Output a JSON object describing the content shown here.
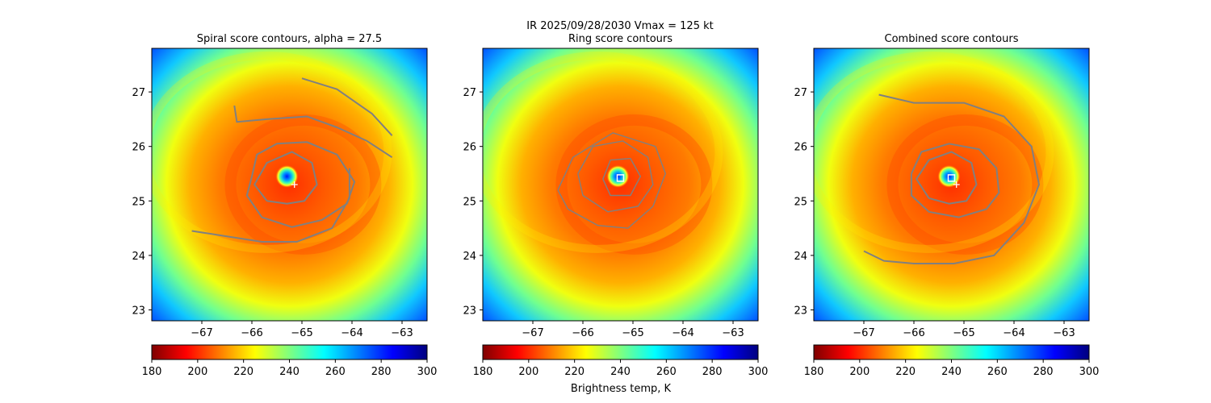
{
  "suptitle_line1": "IR  2025/09/28/2030    Vmax = 125 kt",
  "colorbar_label": "Brightness temp, K",
  "colormap": [
    "#7f0000",
    "#ff0000",
    "#ff7f00",
    "#ffff00",
    "#7fff7f",
    "#00ffff",
    "#007fff",
    "#0000ff",
    "#00007f"
  ],
  "contour_color": "#808080",
  "chart_data": [
    {
      "type": "heatmap",
      "title": "Spiral score contours, alpha = 27.5",
      "xlim": [
        -68.0,
        -62.5
      ],
      "ylim": [
        22.8,
        27.8
      ],
      "xticks": [
        -67,
        -66,
        -65,
        -64,
        -63
      ],
      "yticks": [
        23,
        24,
        25,
        26,
        27
      ],
      "clim": [
        180,
        300
      ],
      "colorbar_ticks": [
        180,
        200,
        220,
        240,
        260,
        280,
        300
      ],
      "eye_center": [
        -65.3,
        25.45
      ],
      "markers": [
        {
          "shape": "plus",
          "lon": -65.15,
          "lat": 25.3,
          "color": "#ffffff"
        }
      ],
      "contours": [
        {
          "level": "inner",
          "points": [
            [
              -65.7,
              25.0
            ],
            [
              -65.95,
              25.3
            ],
            [
              -65.7,
              25.7
            ],
            [
              -65.2,
              25.9
            ],
            [
              -64.8,
              25.7
            ],
            [
              -64.7,
              25.3
            ],
            [
              -64.95,
              25.0
            ],
            [
              -65.3,
              24.95
            ],
            [
              -65.7,
              25.0
            ]
          ]
        },
        {
          "level": "middle",
          "points": [
            [
              -66.0,
              25.45
            ],
            [
              -65.9,
              25.85
            ],
            [
              -65.5,
              26.05
            ],
            [
              -64.9,
              26.08
            ],
            [
              -64.3,
              25.85
            ],
            [
              -63.95,
              25.35
            ],
            [
              -64.1,
              24.95
            ],
            [
              -64.6,
              24.65
            ],
            [
              -65.2,
              24.52
            ],
            [
              -65.8,
              24.7
            ],
            [
              -66.1,
              25.1
            ],
            [
              -66.0,
              25.45
            ]
          ]
        },
        {
          "level": "spiral-top",
          "points": [
            [
              -66.35,
              26.75
            ],
            [
              -66.3,
              26.45
            ],
            [
              -65.7,
              26.5
            ],
            [
              -64.9,
              26.55
            ],
            [
              -64.3,
              26.35
            ],
            [
              -63.7,
              26.1
            ],
            [
              -63.2,
              25.8
            ]
          ]
        },
        {
          "level": "spiral-bottom",
          "points": [
            [
              -67.2,
              24.45
            ],
            [
              -66.5,
              24.35
            ],
            [
              -65.8,
              24.25
            ],
            [
              -65.1,
              24.25
            ],
            [
              -64.4,
              24.5
            ],
            [
              -64.05,
              25.05
            ],
            [
              -64.05,
              25.6
            ]
          ]
        },
        {
          "level": "spiral-outer",
          "points": [
            [
              -65.0,
              27.25
            ],
            [
              -64.3,
              27.05
            ],
            [
              -63.6,
              26.6
            ],
            [
              -63.2,
              26.2
            ]
          ]
        }
      ]
    },
    {
      "type": "heatmap",
      "title": "Ring score contours",
      "xlim": [
        -68.0,
        -62.5
      ],
      "ylim": [
        22.8,
        27.8
      ],
      "xticks": [
        -67,
        -66,
        -65,
        -64,
        -63
      ],
      "yticks": [
        23,
        24,
        25,
        26,
        27
      ],
      "clim": [
        180,
        300
      ],
      "colorbar_ticks": [
        180,
        200,
        220,
        240,
        260,
        280,
        300
      ],
      "eye_center": [
        -65.3,
        25.45
      ],
      "markers": [
        {
          "shape": "square",
          "lon": -65.25,
          "lat": 25.42,
          "color": "#ffffff"
        }
      ],
      "contours": [
        {
          "level": "ring",
          "points": [
            [
              -66.1,
              25.5
            ],
            [
              -65.8,
              26.0
            ],
            [
              -65.2,
              26.1
            ],
            [
              -64.7,
              25.8
            ],
            [
              -64.6,
              25.3
            ],
            [
              -64.9,
              24.9
            ],
            [
              -65.5,
              24.8
            ],
            [
              -66.0,
              25.1
            ],
            [
              -66.1,
              25.5
            ]
          ]
        },
        {
          "level": "ring-inner",
          "points": [
            [
              -65.6,
              25.4
            ],
            [
              -65.45,
              25.75
            ],
            [
              -65.05,
              25.78
            ],
            [
              -64.85,
              25.45
            ],
            [
              -65.05,
              25.1
            ],
            [
              -65.45,
              25.1
            ],
            [
              -65.6,
              25.4
            ]
          ]
        },
        {
          "level": "ring-outer",
          "points": [
            [
              -66.5,
              25.2
            ],
            [
              -66.2,
              25.8
            ],
            [
              -65.4,
              26.25
            ],
            [
              -64.55,
              26.0
            ],
            [
              -64.35,
              25.5
            ],
            [
              -64.6,
              24.9
            ],
            [
              -65.1,
              24.5
            ],
            [
              -65.7,
              24.55
            ],
            [
              -66.3,
              24.85
            ],
            [
              -66.5,
              25.2
            ]
          ]
        }
      ]
    },
    {
      "type": "heatmap",
      "title": "Combined score contours",
      "xlim": [
        -68.0,
        -62.5
      ],
      "ylim": [
        22.8,
        27.8
      ],
      "xticks": [
        -67,
        -66,
        -65,
        -64,
        -63
      ],
      "yticks": [
        23,
        24,
        25,
        26,
        27
      ],
      "clim": [
        180,
        300
      ],
      "colorbar_ticks": [
        180,
        200,
        220,
        240,
        260,
        280,
        300
      ],
      "eye_center": [
        -65.3,
        25.45
      ],
      "markers": [
        {
          "shape": "square",
          "lon": -65.25,
          "lat": 25.42,
          "color": "#ffffff"
        },
        {
          "shape": "plus",
          "lon": -65.15,
          "lat": 25.3,
          "color": "#ffffff"
        }
      ],
      "contours": [
        {
          "level": "inner",
          "points": [
            [
              -65.7,
              25.05
            ],
            [
              -65.95,
              25.4
            ],
            [
              -65.7,
              25.75
            ],
            [
              -65.25,
              25.9
            ],
            [
              -64.85,
              25.7
            ],
            [
              -64.75,
              25.3
            ],
            [
              -64.95,
              25.0
            ],
            [
              -65.3,
              24.95
            ],
            [
              -65.7,
              25.05
            ]
          ]
        },
        {
          "level": "middle",
          "points": [
            [
              -66.05,
              25.5
            ],
            [
              -65.85,
              25.9
            ],
            [
              -65.3,
              26.05
            ],
            [
              -64.7,
              25.95
            ],
            [
              -64.35,
              25.6
            ],
            [
              -64.3,
              25.15
            ],
            [
              -64.55,
              24.85
            ],
            [
              -65.1,
              24.7
            ],
            [
              -65.7,
              24.8
            ],
            [
              -66.05,
              25.1
            ],
            [
              -66.05,
              25.5
            ]
          ]
        },
        {
          "level": "outer",
          "points": [
            [
              -66.7,
              26.95
            ],
            [
              -66.0,
              26.8
            ],
            [
              -65.0,
              26.8
            ],
            [
              -64.2,
              26.55
            ],
            [
              -63.65,
              26.0
            ],
            [
              -63.5,
              25.3
            ],
            [
              -63.8,
              24.6
            ],
            [
              -64.4,
              24.0
            ],
            [
              -65.2,
              23.85
            ],
            [
              -66.0,
              23.85
            ],
            [
              -66.6,
              23.9
            ],
            [
              -67.0,
              24.08
            ]
          ]
        }
      ]
    }
  ]
}
